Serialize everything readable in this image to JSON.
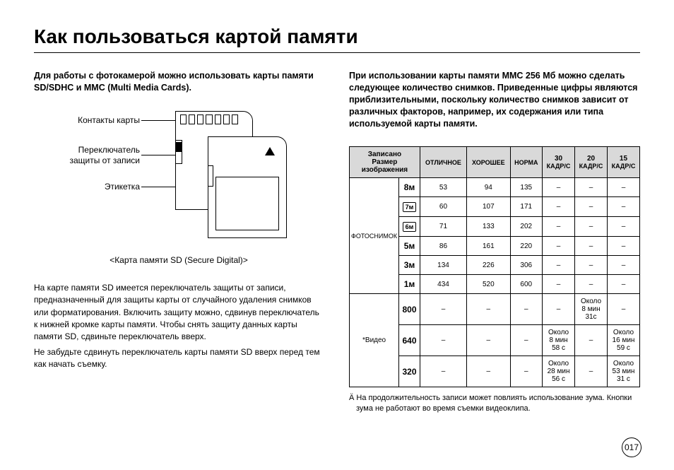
{
  "title": "Как пользоваться картой памяти",
  "left": {
    "intro": "Для работы с фотокамерой можно использовать карты памяти SD/SDHC и MMC (Multi Media Cards).",
    "labels": {
      "contacts": "Контакты карты",
      "switch_l1": "Переключатель",
      "switch_l2": "защиты от записи",
      "sticker": "Этикетка"
    },
    "caption": "<Карта памяти SD (Secure Digital)>",
    "para1": "На карте памяти SD имеется переключатель защиты от записи, предназначенный для защиты карты от случайного удаления снимков или форматирования. Включить защиту можно, сдвинув переключатель к нижней кромке карты памяти. Чтобы снять защиту данных карты памяти SD, сдвиньте переключатель вверх.",
    "para2": "Не забудьте сдвинуть переключатель карты памяти SD вверх перед тем как начать съемку."
  },
  "right": {
    "intro": "При использовании карты памяти MMC 256 Мб можно сделать следующее количество снимков. Приведенные цифры являются приблизительными, поскольку количество снимков зависит от различных факторов, например, их содержания или типа используемой карты памяти.",
    "head": {
      "corner_l1": "Записано",
      "corner_l2": "Размер",
      "corner_l3": "изображения",
      "c1": "ОТЛИЧНОЕ",
      "c2": "ХОРОШЕЕ",
      "c3": "НОРМА",
      "c4a": "30",
      "c4b": "КАДР/С",
      "c5a": "20",
      "c5b": "КАДР/С",
      "c6a": "15",
      "c6b": "КАДР/С"
    },
    "photo_label": "ФОТОСНИМОК",
    "video_label": "*Видео",
    "photo_rows": [
      {
        "size": "8ᴍ",
        "v": [
          "53",
          "94",
          "135",
          "–",
          "–",
          "–"
        ]
      },
      {
        "size": "7ᴍ",
        "boxed": true,
        "v": [
          "60",
          "107",
          "171",
          "–",
          "–",
          "–"
        ]
      },
      {
        "size": "6ᴍ",
        "boxed": true,
        "v": [
          "71",
          "133",
          "202",
          "–",
          "–",
          "–"
        ]
      },
      {
        "size": "5ᴍ",
        "v": [
          "86",
          "161",
          "220",
          "–",
          "–",
          "–"
        ]
      },
      {
        "size": "3ᴍ",
        "v": [
          "134",
          "226",
          "306",
          "–",
          "–",
          "–"
        ]
      },
      {
        "size": "1ᴍ",
        "v": [
          "434",
          "520",
          "600",
          "–",
          "–",
          "–"
        ]
      }
    ],
    "video_rows": [
      {
        "size": "800",
        "v": [
          "–",
          "–",
          "–",
          "–",
          "Около\n8 мин\n31c",
          "–"
        ]
      },
      {
        "size": "640",
        "v": [
          "–",
          "–",
          "–",
          "Около\n8 мин\n58 c",
          "–",
          "Около\n16 мин\n59 c"
        ]
      },
      {
        "size": "320",
        "v": [
          "–",
          "–",
          "–",
          "Около\n28 мин\n56 c",
          "–",
          "Около\n53 мин\n31 c"
        ]
      }
    ],
    "footnote": "Ä На продолжительность записи может повлиять использование зума. Кнопки зума не работают во время съемки видеоклипа."
  },
  "page": "017"
}
